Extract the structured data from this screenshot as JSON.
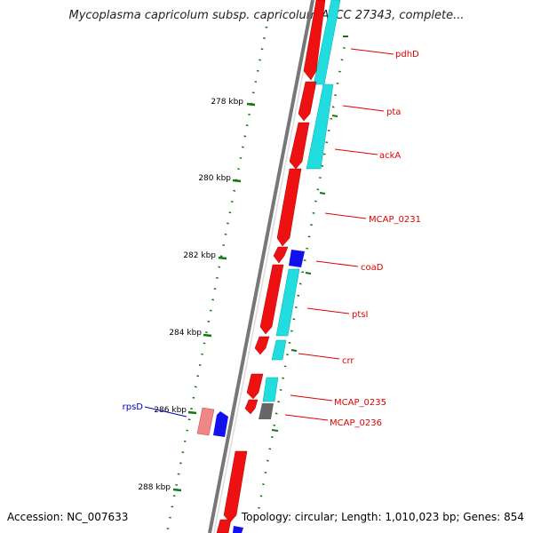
{
  "title": "Mycoplasma capricolum subsp. capricolum ATCC 27343, complete...",
  "footer": {
    "accession": "Accession: NC_007633",
    "genome_info": "Topology: circular; Length: 1,010,023 bp; Genes: 854"
  },
  "ruler": [
    {
      "label": "278 kbp",
      "kbp": 278
    },
    {
      "label": "280 kbp",
      "kbp": 280
    },
    {
      "label": "282 kbp",
      "kbp": 282
    },
    {
      "label": "284 kbp",
      "kbp": 284
    },
    {
      "label": "286 kbp",
      "kbp": 286
    },
    {
      "label": "288 kbp",
      "kbp": 288
    }
  ],
  "gene_labels": [
    {
      "name": "pdhD",
      "strand": "forward",
      "color": "#e00000"
    },
    {
      "name": "pta",
      "strand": "forward",
      "color": "#e00000"
    },
    {
      "name": "ackA",
      "strand": "forward",
      "color": "#e00000"
    },
    {
      "name": "MCAP_0231",
      "strand": "forward",
      "color": "#e00000"
    },
    {
      "name": "coaD",
      "strand": "forward",
      "color": "#e00000"
    },
    {
      "name": "ptsI",
      "strand": "forward",
      "color": "#e00000"
    },
    {
      "name": "crr",
      "strand": "forward",
      "color": "#e00000"
    },
    {
      "name": "MCAP_0235",
      "strand": "forward",
      "color": "#e00000"
    },
    {
      "name": "MCAP_0236",
      "strand": "forward",
      "color": "#e00000"
    },
    {
      "name": "rpsD",
      "strand": "reverse",
      "color": "#0000c0"
    }
  ],
  "colors": {
    "forward_cds": "#ee1111",
    "reverse_cds": "#1111ee",
    "cog_cyan": "#22dde0",
    "cog_grey": "#777777",
    "cog_pink": "#ee8888",
    "backbone": "#888888",
    "ticks": "#117711"
  }
}
